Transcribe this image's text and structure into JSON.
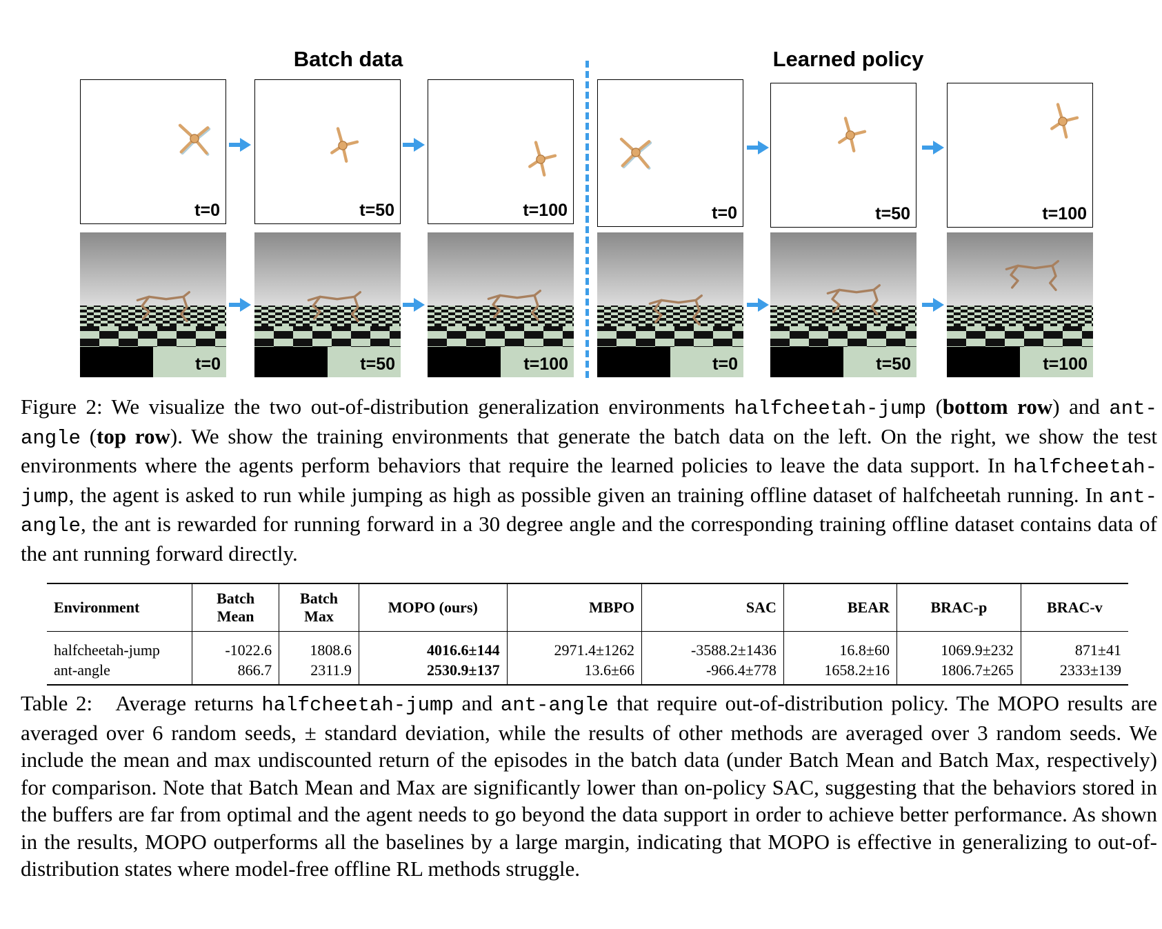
{
  "figure": {
    "left_title": "Batch data",
    "right_title": "Learned policy",
    "time_labels": [
      "t=0",
      "t=50",
      "t=100",
      "t=0",
      "t=50",
      "t=100"
    ],
    "arrow_color": "#3d9de8",
    "caption": {
      "label": "Figure 2:",
      "p1": " We visualize the two out-of-distribution generalization environments ",
      "env1": "halfcheetah-jump",
      "p2": " (",
      "bold1": "bottom row",
      "p3": ") and ",
      "env2": "ant-angle",
      "p4": " (",
      "bold2": "top row",
      "p5": "). We show the training environments that generate the batch data on the left. On the right, we show the test environments where the agents perform behaviors that require the learned policies to leave the data support. In ",
      "env3": "halfcheetah-jump",
      "p6": ", the agent is asked to run while jumping as high as possible given an training offline dataset of halfcheetah running. In ",
      "env4": "ant-angle",
      "p7": ", the ant is rewarded for running forward in a 30 degree angle and the corresponding training offline dataset contains data of the ant running forward directly."
    }
  },
  "table": {
    "headers": {
      "environment": "Environment",
      "batch_mean_1": "Batch",
      "batch_mean_2": "Mean",
      "batch_max_1": "Batch",
      "batch_max_2": "Max",
      "mopo": "MOPO (ours)",
      "mbpo": "MBPO",
      "sac": "SAC",
      "bear": "BEAR",
      "bracp": "BRAC-p",
      "bracv": "BRAC-v"
    },
    "rows": [
      {
        "env": "halfcheetah-jump",
        "batch_mean": "-1022.6",
        "batch_max": "1808.6",
        "mopo": "4016.6±144",
        "mbpo": "2971.4±1262",
        "sac": "-3588.2±1436",
        "bear": "16.8±60",
        "bracp": "1069.9±232",
        "bracv": "871±41"
      },
      {
        "env": "ant-angle",
        "batch_mean": "866.7",
        "batch_max": "2311.9",
        "mopo": "2530.9±137",
        "mbpo": "13.6±66",
        "sac": "-966.4±778",
        "bear": "1658.2±16",
        "bracp": "1806.7±265",
        "bracv": "2333±139"
      }
    ],
    "caption": {
      "label": "Table 2:",
      "p1": "   Average returns ",
      "env1": "halfcheetah-jump",
      "p2": " and ",
      "env2": "ant-angle",
      "p3": " that require out-of-distribution policy. The MOPO results are averaged over 6 random seeds, ± standard deviation, while the results of other methods are averaged over 3 random seeds. We include the mean and max undiscounted return of the episodes in the batch data (under Batch Mean and Batch Max, respectively) for comparison. Note that Batch Mean and Max are significantly lower than on-policy SAC, suggesting that the behaviors stored in the buffers are far from optimal and the agent needs to go beyond the data support in order to achieve better performance. As shown in the results, MOPO outperforms all the baselines by a large margin, indicating that MOPO is effective in generalizing to out-of-distribution states where model-free offline RL methods struggle."
    }
  }
}
